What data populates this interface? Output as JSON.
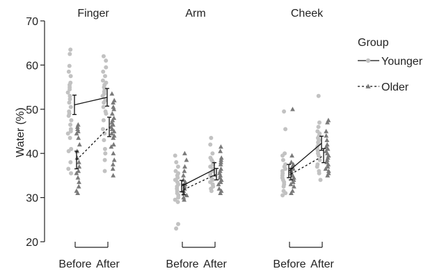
{
  "chart_data": {
    "type": "scatter",
    "ylabel": "Water (%)",
    "ylim": [
      20,
      70
    ],
    "yticks": [
      20,
      30,
      40,
      50,
      60,
      70
    ],
    "x_categories": [
      "Before",
      "After"
    ],
    "panels": [
      {
        "title": "Finger",
        "series_means": [
          {
            "name": "Younger",
            "before": 51.0,
            "after": 52.7,
            "err_before": 2.2,
            "err_after": 2.0
          },
          {
            "name": "Older",
            "before": 38.5,
            "after": 46.0,
            "err_before": 2.0,
            "err_after": 2.2
          }
        ],
        "points": {
          "Younger": {
            "before": [
              63.5,
              62.5,
              59.8,
              58.5,
              57.5,
              56.0,
              55.5,
              55.0,
              54.5,
              53.8,
              53.0,
              52.3,
              51.5,
              50.5,
              49.5,
              49.0,
              48.5,
              47.5,
              46.5,
              45.5,
              45.0,
              44.5,
              43.5,
              41.0,
              40.5,
              38.0,
              36.5,
              35.5
            ],
            "after": [
              62.0,
              61.0,
              59.5,
              58.5,
              57.5,
              56.5,
              56.0,
              55.5,
              55.0,
              54.5,
              54.0,
              53.5,
              53.0,
              52.0,
              51.5,
              50.5,
              49.5,
              49.0,
              47.5,
              45.5,
              44.5,
              43.0,
              41.0,
              40.0,
              38.5,
              36.0
            ]
          },
          "Older": {
            "before": [
              46.5,
              46.0,
              45.5,
              45.0,
              44.5,
              43.5,
              42.0,
              40.5,
              39.0,
              38.0,
              37.0,
              36.0,
              35.5,
              34.5,
              33.5,
              32.5,
              31.5,
              31.0
            ],
            "after": [
              53.5,
              52.0,
              51.5,
              50.5,
              50.0,
              49.0,
              48.0,
              47.5,
              47.0,
              46.5,
              46.0,
              45.5,
              45.0,
              44.5,
              44.0,
              43.5,
              42.0,
              41.5,
              40.0,
              38.5,
              37.5,
              36.5,
              35.0
            ]
          }
        }
      },
      {
        "title": "Arm",
        "series_means": [
          {
            "name": "Younger",
            "before": 32.6,
            "after": 36.4,
            "err_before": 1.3,
            "err_after": 1.5
          },
          {
            "name": "Older",
            "before": 31.8,
            "after": 35.3,
            "err_before": 1.2,
            "err_after": 1.3
          }
        ],
        "points": {
          "Younger": {
            "before": [
              39.5,
              38.0,
              37.0,
              36.0,
              35.5,
              35.0,
              34.5,
              34.0,
              33.5,
              33.0,
              32.5,
              32.0,
              31.5,
              31.0,
              30.5,
              30.0,
              29.5,
              29.0,
              24.0,
              23.0
            ],
            "after": [
              43.5,
              42.0,
              40.0,
              39.0,
              38.5,
              38.0,
              37.5,
              37.0,
              36.5,
              36.0,
              35.5,
              35.0,
              34.5,
              34.0,
              33.5,
              33.0,
              32.5,
              32.0,
              31.5
            ]
          },
          "Older": {
            "before": [
              40.0,
              38.5,
              37.0,
              36.0,
              35.0,
              34.0,
              33.5,
              33.0,
              32.5,
              32.0,
              31.5,
              31.0,
              30.5,
              30.0,
              29.5
            ],
            "after": [
              41.5,
              40.5,
              39.0,
              38.5,
              38.0,
              37.5,
              36.5,
              36.0,
              35.5,
              35.0,
              34.5,
              34.0,
              33.5,
              33.0,
              32.0,
              31.5,
              31.0
            ]
          }
        }
      },
      {
        "title": "Cheek",
        "series_means": [
          {
            "name": "Younger",
            "before": 36.0,
            "after": 42.3,
            "err_before": 1.5,
            "err_after": 1.6
          },
          {
            "name": "Older",
            "before": 35.3,
            "after": 39.5,
            "err_before": 1.3,
            "err_after": 1.6
          }
        ],
        "points": {
          "Younger": {
            "before": [
              49.5,
              45.5,
              40.0,
              39.5,
              38.5,
              37.5,
              37.0,
              36.5,
              36.0,
              35.5,
              35.0,
              34.5,
              34.0,
              33.5,
              33.0,
              32.5,
              31.5,
              31.0,
              30.5
            ],
            "after": [
              53.0,
              47.0,
              46.0,
              45.0,
              44.5,
              44.0,
              43.5,
              43.0,
              42.5,
              42.0,
              41.5,
              41.0,
              40.5,
              40.0,
              39.5,
              38.5,
              37.5,
              37.0,
              36.0,
              35.5,
              34.0
            ]
          },
          "Older": {
            "before": [
              50.0,
              39.5,
              38.0,
              37.5,
              37.0,
              36.5,
              36.0,
              35.5,
              35.0,
              34.5,
              34.0,
              33.5,
              33.0,
              32.5,
              31.5,
              31.0
            ],
            "after": [
              47.5,
              47.0,
              45.0,
              44.0,
              43.0,
              42.0,
              41.5,
              41.0,
              40.5,
              40.0,
              39.5,
              39.0,
              38.5,
              38.0,
              37.5,
              37.0,
              36.5,
              36.0,
              35.5,
              35.0
            ]
          }
        }
      }
    ],
    "legend": {
      "title": "Group",
      "placement": "right",
      "entries": [
        {
          "name": "Younger",
          "line": "solid",
          "marker": "circle"
        },
        {
          "name": "Older",
          "line": "dotted",
          "marker": "triangle"
        }
      ]
    },
    "colors": {
      "younger_points": "#c2c2c2",
      "older_points": "#7a7a7a",
      "line": "#111111",
      "axis": "#222222"
    }
  }
}
